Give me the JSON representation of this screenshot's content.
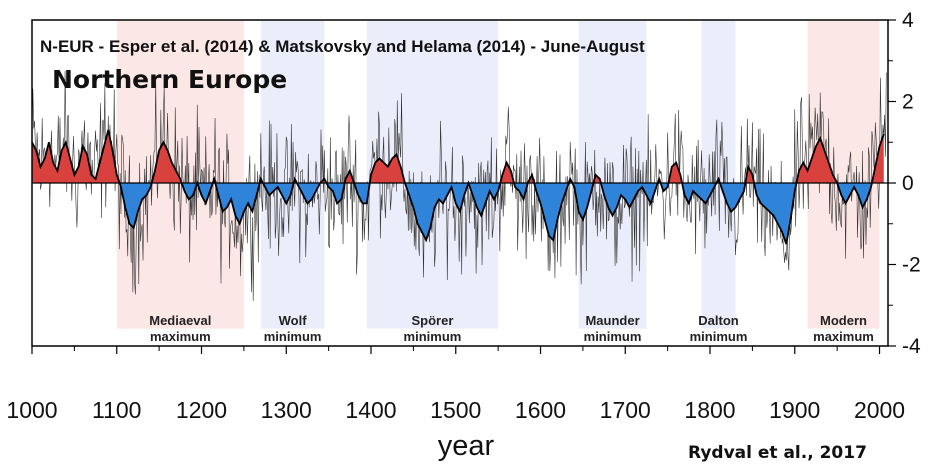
{
  "chart_data": {
    "type": "area",
    "title": "N-EUR - Esper et al. (2014) & Matskovsky and Helama (2014) - June-August",
    "subtitle": "Northern Europe",
    "xlabel": "year",
    "credit": "Rydval et al., 2017",
    "xlim": [
      1000,
      2010
    ],
    "ylim": [
      -4,
      4
    ],
    "x_ticks": [
      1000,
      1100,
      1200,
      1300,
      1400,
      1500,
      1600,
      1700,
      1800,
      1900,
      2000
    ],
    "y_ticks": [
      4,
      2,
      0,
      -2,
      -4
    ],
    "colors": {
      "positive": "#d9413f",
      "negative": "#2f83d8",
      "smooth_line": "#000000",
      "annual_line": "#333333",
      "warm_band": "#fbe7e6",
      "cold_band": "#ecedfb"
    },
    "periods": [
      {
        "name": "Mediaeval",
        "name2": "maximum",
        "start": 1100,
        "end": 1250,
        "kind": "warm"
      },
      {
        "name": "Wolf",
        "name2": "minimum",
        "start": 1270,
        "end": 1345,
        "kind": "cold"
      },
      {
        "name": "Spörer",
        "name2": "minimum",
        "start": 1395,
        "end": 1550,
        "kind": "cold"
      },
      {
        "name": "Maunder",
        "name2": "minimum",
        "start": 1645,
        "end": 1725,
        "kind": "cold"
      },
      {
        "name": "Dalton",
        "name2": "minimum",
        "start": 1790,
        "end": 1830,
        "kind": "cold"
      },
      {
        "name": "Modern",
        "name2": "maximum",
        "start": 1915,
        "end": 2000,
        "kind": "warm"
      }
    ],
    "series": [
      {
        "kind": "smoothed",
        "x": [
          1000,
          1005,
          1010,
          1015,
          1020,
          1025,
          1030,
          1035,
          1040,
          1045,
          1050,
          1055,
          1060,
          1065,
          1070,
          1075,
          1080,
          1085,
          1090,
          1095,
          1100,
          1105,
          1110,
          1115,
          1120,
          1125,
          1130,
          1135,
          1140,
          1145,
          1150,
          1155,
          1160,
          1165,
          1170,
          1175,
          1180,
          1185,
          1190,
          1195,
          1200,
          1205,
          1210,
          1215,
          1220,
          1225,
          1230,
          1235,
          1240,
          1245,
          1250,
          1255,
          1260,
          1265,
          1270,
          1275,
          1280,
          1285,
          1290,
          1295,
          1300,
          1305,
          1310,
          1315,
          1320,
          1325,
          1330,
          1335,
          1340,
          1345,
          1350,
          1355,
          1360,
          1365,
          1370,
          1375,
          1380,
          1385,
          1390,
          1395,
          1400,
          1405,
          1410,
          1415,
          1420,
          1425,
          1430,
          1435,
          1440,
          1445,
          1450,
          1455,
          1460,
          1465,
          1470,
          1475,
          1480,
          1485,
          1490,
          1495,
          1500,
          1505,
          1510,
          1515,
          1520,
          1525,
          1530,
          1535,
          1540,
          1545,
          1550,
          1555,
          1560,
          1565,
          1570,
          1575,
          1580,
          1585,
          1590,
          1595,
          1600,
          1605,
          1610,
          1615,
          1620,
          1625,
          1630,
          1635,
          1640,
          1645,
          1650,
          1655,
          1660,
          1665,
          1670,
          1675,
          1680,
          1685,
          1690,
          1695,
          1700,
          1705,
          1710,
          1715,
          1720,
          1725,
          1730,
          1735,
          1740,
          1745,
          1750,
          1755,
          1760,
          1765,
          1770,
          1775,
          1780,
          1785,
          1790,
          1795,
          1800,
          1805,
          1810,
          1815,
          1820,
          1825,
          1830,
          1835,
          1840,
          1845,
          1850,
          1855,
          1860,
          1865,
          1870,
          1875,
          1880,
          1885,
          1890,
          1895,
          1900,
          1905,
          1910,
          1915,
          1920,
          1925,
          1930,
          1935,
          1940,
          1945,
          1950,
          1955,
          1960,
          1965,
          1970,
          1975,
          1980,
          1985,
          1990,
          1995,
          2000,
          2005
        ],
        "y": [
          1.0,
          0.8,
          0.4,
          0.6,
          1.0,
          0.5,
          0.3,
          0.8,
          1.0,
          0.6,
          0.2,
          0.4,
          0.9,
          0.7,
          0.2,
          0.1,
          0.5,
          0.9,
          1.3,
          0.8,
          0.2,
          -0.1,
          -0.6,
          -1.0,
          -1.1,
          -0.7,
          -0.4,
          -0.3,
          -0.1,
          0.3,
          0.8,
          1.0,
          0.8,
          0.5,
          0.3,
          0.1,
          -0.2,
          -0.4,
          -0.3,
          0.0,
          -0.3,
          -0.5,
          -0.2,
          0.1,
          -0.3,
          -0.7,
          -0.6,
          -0.4,
          -0.8,
          -1.0,
          -0.7,
          -0.5,
          -0.7,
          -0.3,
          0.1,
          -0.1,
          -0.3,
          -0.2,
          -0.1,
          -0.3,
          -0.5,
          -0.3,
          0.1,
          -0.1,
          -0.3,
          -0.5,
          -0.4,
          -0.2,
          0.0,
          0.1,
          -0.1,
          -0.2,
          -0.5,
          -0.4,
          0.1,
          0.3,
          0.0,
          -0.3,
          -0.5,
          -0.5,
          0.2,
          0.5,
          0.6,
          0.5,
          0.4,
          0.6,
          0.7,
          0.4,
          0.0,
          -0.3,
          -0.6,
          -1.0,
          -1.2,
          -1.4,
          -1.1,
          -0.6,
          -0.4,
          -0.5,
          -0.3,
          -0.1,
          -0.5,
          -0.7,
          -0.3,
          0.0,
          -0.3,
          -0.6,
          -0.8,
          -0.5,
          -0.2,
          -0.4,
          -0.2,
          0.2,
          0.5,
          0.3,
          -0.1,
          -0.2,
          -0.4,
          0.0,
          0.2,
          -0.2,
          -0.5,
          -0.9,
          -1.3,
          -1.4,
          -0.9,
          -0.5,
          -0.2,
          0.1,
          -0.1,
          -0.7,
          -0.9,
          -0.6,
          -0.2,
          0.2,
          0.1,
          -0.3,
          -0.6,
          -0.8,
          -0.6,
          -0.3,
          -0.4,
          -0.6,
          -0.4,
          -0.2,
          -0.1,
          -0.3,
          -0.5,
          -0.2,
          0.1,
          -0.2,
          -0.1,
          0.4,
          0.5,
          0.2,
          -0.3,
          -0.5,
          -0.2,
          -0.3,
          -0.4,
          -0.5,
          -0.3,
          -0.1,
          0.1,
          -0.2,
          -0.5,
          -0.7,
          -0.6,
          -0.4,
          -0.2,
          0.4,
          0.2,
          -0.3,
          -0.5,
          -0.6,
          -0.7,
          -0.8,
          -1.0,
          -1.2,
          -1.5,
          -0.9,
          -0.2,
          0.3,
          0.5,
          0.3,
          0.6,
          0.9,
          1.1,
          0.8,
          0.5,
          0.2,
          0.0,
          -0.3,
          -0.5,
          -0.3,
          -0.1,
          -0.3,
          -0.6,
          -0.4,
          -0.1,
          0.4,
          0.9,
          1.2
        ]
      }
    ]
  }
}
